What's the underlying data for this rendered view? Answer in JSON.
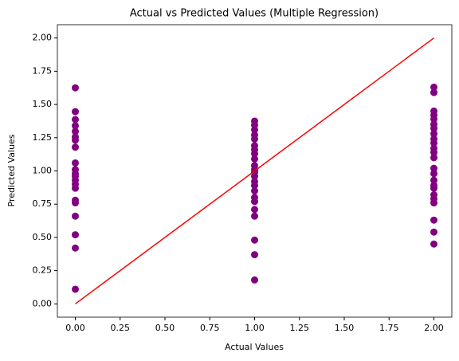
{
  "chart_data": {
    "type": "scatter",
    "title": "Actual vs Predicted Values (Multiple Regression)",
    "x_label": "Actual Values",
    "y_label": "Predicted Values",
    "color": "#800080",
    "x": [
      0,
      0,
      0,
      0,
      0,
      0,
      0,
      0,
      0,
      0,
      0,
      0,
      0,
      0,
      0,
      0,
      0,
      0,
      0,
      0,
      0,
      1,
      1,
      1,
      1,
      1,
      1,
      1,
      1,
      1,
      1,
      1,
      1,
      1,
      1,
      1,
      1,
      1,
      1,
      1,
      1,
      1,
      1,
      1,
      2,
      2,
      2,
      2,
      2,
      2,
      2,
      2,
      2,
      2,
      2,
      2,
      2,
      2,
      2,
      2,
      2,
      2,
      2,
      2,
      2,
      2,
      2,
      2
    ],
    "values": [
      1.625,
      1.446,
      1.387,
      1.34,
      1.298,
      1.256,
      1.232,
      1.179,
      1.06,
      1.01,
      0.98,
      0.96,
      0.93,
      0.9,
      0.87,
      0.78,
      0.76,
      0.66,
      0.52,
      0.42,
      0.11,
      1.375,
      1.345,
      1.31,
      1.27,
      1.24,
      1.19,
      1.16,
      1.13,
      1.09,
      1.04,
      1.01,
      0.99,
      0.96,
      0.92,
      0.89,
      0.85,
      0.8,
      0.77,
      0.71,
      0.66,
      0.48,
      0.37,
      0.18,
      1.63,
      1.59,
      1.45,
      1.42,
      1.39,
      1.35,
      1.32,
      1.28,
      1.24,
      1.21,
      1.17,
      1.14,
      1.1,
      1.02,
      0.98,
      0.93,
      0.89,
      0.87,
      0.82,
      0.79,
      0.76,
      0.63,
      0.54,
      0.45
    ],
    "line": {
      "x": [
        0,
        2
      ],
      "y": [
        0,
        2
      ],
      "color": "#ff0000"
    },
    "xlim": [
      -0.1,
      2.1
    ],
    "ylim": [
      -0.1,
      2.1
    ],
    "xticks": [
      {
        "value": 0,
        "label": "0.00"
      },
      {
        "value": 0.25,
        "label": "0.25"
      },
      {
        "value": 0.5,
        "label": "0.50"
      },
      {
        "value": 0.75,
        "label": "0.75"
      },
      {
        "value": 1,
        "label": "1.00"
      },
      {
        "value": 1.25,
        "label": "1.25"
      },
      {
        "value": 1.5,
        "label": "1.50"
      },
      {
        "value": 1.75,
        "label": "1.75"
      },
      {
        "value": 2,
        "label": "2.00"
      }
    ],
    "yticks": [
      {
        "value": 0,
        "label": "0.00"
      },
      {
        "value": 0.25,
        "label": "0.25"
      },
      {
        "value": 0.5,
        "label": "0.50"
      },
      {
        "value": 0.75,
        "label": "0.75"
      },
      {
        "value": 1,
        "label": "1.00"
      },
      {
        "value": 1.25,
        "label": "1.25"
      },
      {
        "value": 1.5,
        "label": "1.50"
      },
      {
        "value": 1.75,
        "label": "1.75"
      },
      {
        "value": 2,
        "label": "2.00"
      }
    ]
  }
}
